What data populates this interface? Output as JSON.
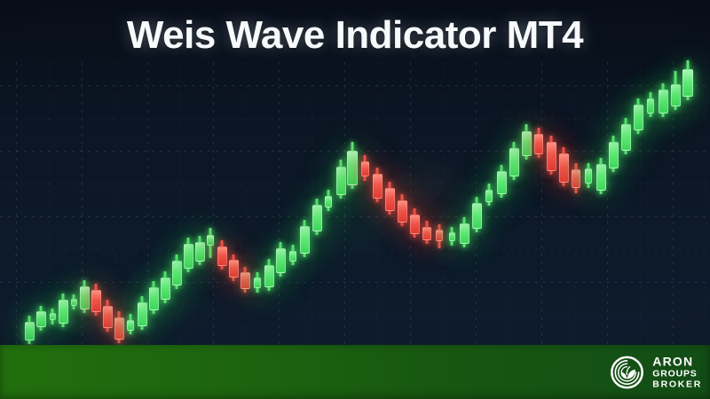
{
  "header": {
    "title": "Weis Wave Indicator MT4"
  },
  "banner": {
    "brand": {
      "icon": "leaf-swirl-circle-logo",
      "name_line1": "ARON",
      "name_line2": "GROUPS",
      "name_line3": "BROKER"
    }
  },
  "colors": {
    "background_navy": "#0d1a2a",
    "title_white": "#f7fafd",
    "bull_green": "#54e169",
    "bear_red": "#f05247",
    "banner_green_left": "#226f0e",
    "banner_green_right": "#134d16",
    "grid_line": "rgba(140,172,206,0.16)"
  },
  "chart_data": {
    "type": "candlestick",
    "title": "",
    "xlabel": "",
    "ylabel": "",
    "axes_note": "decorative price chart - no axis tick labels or numeric values are shown in the image",
    "grid": "faint dashed grid on, dark navy background",
    "units": "pixel coordinates on the 800x450 canvas; y increases downward",
    "columns": [
      "x_center",
      "high_y",
      "body_top_y",
      "body_bottom_y",
      "low_y",
      "direction",
      "body_width"
    ],
    "pattern": "zigzag uptrend from lower-left to upper-right: green impulse waves alternating with red corrective waves",
    "waves": [
      {
        "direction": "up",
        "color": "green",
        "candles": 6
      },
      {
        "direction": "down",
        "color": "red",
        "candles": 3
      },
      {
        "direction": "up",
        "color": "green",
        "candles": 8
      },
      {
        "direction": "down",
        "color": "red",
        "candles": 3
      },
      {
        "direction": "up",
        "color": "green",
        "candles": 9
      },
      {
        "direction": "down",
        "color": "red",
        "candles": 7
      },
      {
        "direction": "up",
        "color": "green",
        "candles": 7
      },
      {
        "direction": "down",
        "color": "red",
        "candles": 4
      },
      {
        "direction": "up",
        "color": "green",
        "candles": 9
      }
    ],
    "candles": [
      [
        33,
        356,
        363,
        382,
        388,
        "up",
        11
      ],
      [
        46,
        345,
        351,
        367,
        373,
        "up",
        11
      ],
      [
        59,
        348,
        353,
        359,
        366,
        "up",
        7
      ],
      [
        71,
        331,
        338,
        363,
        369,
        "up",
        11
      ],
      [
        83,
        332,
        337,
        343,
        349,
        "up",
        7
      ],
      [
        95,
        316,
        323,
        347,
        353,
        "up",
        11
      ],
      [
        108,
        320,
        327,
        350,
        356,
        "down",
        11
      ],
      [
        121,
        338,
        345,
        368,
        374,
        "down",
        11
      ],
      [
        134,
        351,
        358,
        381,
        387,
        "down",
        11
      ],
      [
        147,
        354,
        361,
        371,
        377,
        "up",
        8
      ],
      [
        160,
        334,
        341,
        366,
        372,
        "up",
        11
      ],
      [
        173,
        317,
        324,
        348,
        354,
        "up",
        11
      ],
      [
        186,
        306,
        313,
        336,
        342,
        "up",
        11
      ],
      [
        199,
        287,
        294,
        320,
        326,
        "up",
        11
      ],
      [
        212,
        268,
        275,
        301,
        307,
        "up",
        11
      ],
      [
        225,
        266,
        273,
        293,
        299,
        "up",
        11
      ],
      [
        237,
        257,
        265,
        275,
        291,
        "up",
        8
      ],
      [
        250,
        271,
        278,
        298,
        304,
        "down",
        11
      ],
      [
        263,
        287,
        293,
        311,
        317,
        "down",
        11
      ],
      [
        276,
        301,
        307,
        324,
        330,
        "down",
        11
      ],
      [
        290,
        307,
        313,
        323,
        330,
        "up",
        8
      ],
      [
        303,
        292,
        299,
        322,
        328,
        "up",
        11
      ],
      [
        316,
        273,
        280,
        306,
        312,
        "up",
        11
      ],
      [
        330,
        276,
        283,
        293,
        299,
        "up",
        8
      ],
      [
        343,
        248,
        255,
        284,
        290,
        "up",
        11
      ],
      [
        357,
        224,
        231,
        259,
        265,
        "up",
        11
      ],
      [
        370,
        214,
        221,
        232,
        238,
        "up",
        8
      ],
      [
        384,
        180,
        188,
        218,
        224,
        "up",
        11
      ],
      [
        397,
        160,
        170,
        207,
        213,
        "up",
        12
      ],
      [
        411,
        175,
        182,
        197,
        204,
        "down",
        9
      ],
      [
        425,
        189,
        196,
        222,
        228,
        "down",
        11
      ],
      [
        439,
        205,
        212,
        236,
        242,
        "down",
        11
      ],
      [
        453,
        219,
        226,
        249,
        255,
        "down",
        11
      ],
      [
        467,
        235,
        242,
        262,
        268,
        "down",
        11
      ],
      [
        481,
        249,
        256,
        269,
        275,
        "down",
        10
      ],
      [
        495,
        253,
        259,
        270,
        280,
        "down",
        8
      ],
      [
        509,
        256,
        262,
        270,
        277,
        "up",
        7
      ],
      [
        523,
        245,
        252,
        273,
        279,
        "up",
        11
      ],
      [
        537,
        222,
        229,
        256,
        262,
        "up",
        11
      ],
      [
        551,
        207,
        214,
        226,
        232,
        "up",
        8
      ],
      [
        565,
        186,
        193,
        217,
        223,
        "up",
        11
      ],
      [
        579,
        160,
        167,
        197,
        203,
        "up",
        11
      ],
      [
        593,
        140,
        148,
        174,
        180,
        "up",
        11
      ],
      [
        607,
        144,
        151,
        172,
        178,
        "down",
        10
      ],
      [
        621,
        153,
        160,
        191,
        197,
        "down",
        11
      ],
      [
        635,
        166,
        173,
        204,
        210,
        "down",
        11
      ],
      [
        649,
        184,
        191,
        210,
        218,
        "down",
        10
      ],
      [
        663,
        184,
        190,
        205,
        212,
        "up",
        8
      ],
      [
        677,
        178,
        185,
        213,
        219,
        "up",
        11
      ],
      [
        691,
        153,
        160,
        188,
        194,
        "up",
        11
      ],
      [
        705,
        133,
        140,
        168,
        174,
        "up",
        11
      ],
      [
        719,
        111,
        118,
        145,
        151,
        "up",
        11
      ],
      [
        733,
        104,
        111,
        126,
        132,
        "up",
        8
      ],
      [
        747,
        94,
        101,
        126,
        132,
        "up",
        11
      ],
      [
        761,
        80,
        95,
        118,
        124,
        "up",
        11
      ],
      [
        775,
        68,
        78,
        107,
        113,
        "up",
        12
      ]
    ]
  }
}
